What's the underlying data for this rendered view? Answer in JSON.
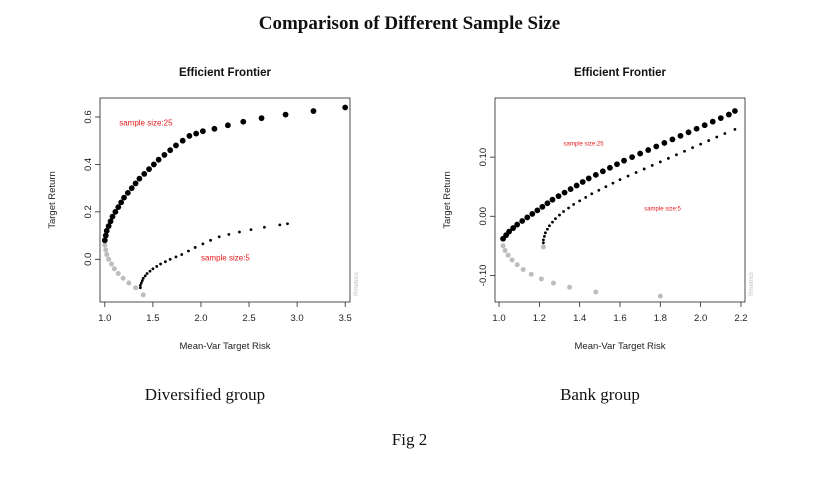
{
  "page": {
    "title": "Comparison of Different Sample Size",
    "figure_label": "Fig 2"
  },
  "chart_data": [
    {
      "type": "scatter",
      "caption": "Diversified group",
      "title": "Efficient Frontier",
      "xlabel": "Mean-Var Target Risk",
      "ylabel": "Target Return",
      "xlim": [
        0.95,
        3.55
      ],
      "ylim": [
        -0.18,
        0.68
      ],
      "xticks": [
        1.0,
        1.5,
        2.0,
        2.5,
        3.0,
        3.5
      ],
      "xtick_labels": [
        "1.0",
        "1.5",
        "2.0",
        "2.5",
        "3.0",
        "3.5"
      ],
      "yticks": [
        0.0,
        0.2,
        0.4,
        0.6
      ],
      "ytick_labels": [
        "0.0",
        "0.2",
        "0.4",
        "0.6"
      ],
      "watermark": "Rmetrics",
      "colors": {
        "series_25": "#000000",
        "series_5": "#000000",
        "inefficient": "#bdbdbd",
        "annotation": "#e41a1c"
      },
      "series": [
        {
          "name": "sample size:25",
          "point_size": "large",
          "x": [
            1.0,
            1.01,
            1.02,
            1.04,
            1.06,
            1.08,
            1.11,
            1.14,
            1.17,
            1.2,
            1.24,
            1.28,
            1.32,
            1.36,
            1.41,
            1.46,
            1.51,
            1.56,
            1.62,
            1.68,
            1.74,
            1.81,
            1.88,
            1.95,
            2.02,
            2.14,
            2.28,
            2.44,
            2.63,
            2.88,
            3.17,
            3.5
          ],
          "y": [
            0.08,
            0.1,
            0.12,
            0.14,
            0.16,
            0.18,
            0.2,
            0.22,
            0.24,
            0.26,
            0.28,
            0.3,
            0.32,
            0.34,
            0.36,
            0.38,
            0.4,
            0.42,
            0.44,
            0.46,
            0.48,
            0.5,
            0.52,
            0.53,
            0.54,
            0.55,
            0.565,
            0.58,
            0.595,
            0.61,
            0.625,
            0.64
          ]
        },
        {
          "name": "sample size:5",
          "point_size": "small",
          "x": [
            1.37,
            1.37,
            1.38,
            1.39,
            1.4,
            1.42,
            1.44,
            1.47,
            1.5,
            1.54,
            1.58,
            1.63,
            1.68,
            1.74,
            1.8,
            1.87,
            1.94,
            2.02,
            2.1,
            2.19,
            2.29,
            2.4,
            2.52,
            2.66,
            2.82,
            2.9
          ],
          "y": [
            -0.12,
            -0.11,
            -0.1,
            -0.09,
            -0.08,
            -0.07,
            -0.06,
            -0.05,
            -0.04,
            -0.03,
            -0.02,
            -0.01,
            0.0,
            0.01,
            0.02,
            0.035,
            0.05,
            0.065,
            0.08,
            0.095,
            0.105,
            0.115,
            0.125,
            0.135,
            0.145,
            0.15
          ]
        },
        {
          "name": "",
          "point_size": "medium",
          "style": "inefficient",
          "x": [
            1.0,
            1.01,
            1.02,
            1.04,
            1.07,
            1.1,
            1.14,
            1.19,
            1.25,
            1.32,
            1.4
          ],
          "y": [
            0.06,
            0.04,
            0.02,
            0.0,
            -0.02,
            -0.04,
            -0.06,
            -0.08,
            -0.1,
            -0.12,
            -0.15
          ]
        }
      ],
      "annotations": [
        {
          "text": "sample size:25",
          "x": 1.15,
          "y": 0.565
        },
        {
          "text": "sample size:5",
          "x": 2.0,
          "y": -0.005
        }
      ]
    },
    {
      "type": "scatter",
      "caption": "Bank group",
      "title": "Efficient Frontier",
      "xlabel": "Mean-Var Target Risk",
      "ylabel": "Target Return",
      "xlim": [
        0.98,
        2.22
      ],
      "ylim": [
        -0.145,
        0.2
      ],
      "xticks": [
        1.0,
        1.2,
        1.4,
        1.6,
        1.8,
        2.0,
        2.2
      ],
      "xtick_labels": [
        "1.0",
        "1.2",
        "1.4",
        "1.6",
        "1.8",
        "2.0",
        "2.2"
      ],
      "yticks": [
        -0.1,
        0.0,
        0.1
      ],
      "ytick_labels": [
        "-0.10",
        "0.00",
        "0.10"
      ],
      "watermark": "Rmetrics",
      "colors": {
        "series_25": "#000000",
        "series_5": "#000000",
        "inefficient": "#bdbdbd",
        "annotation": "#e41a1c"
      },
      "series": [
        {
          "name": "sample size:25",
          "point_size": "large",
          "x": [
            1.02,
            1.035,
            1.05,
            1.07,
            1.09,
            1.115,
            1.14,
            1.165,
            1.19,
            1.215,
            1.24,
            1.265,
            1.295,
            1.325,
            1.355,
            1.385,
            1.415,
            1.445,
            1.48,
            1.515,
            1.55,
            1.585,
            1.62,
            1.66,
            1.7,
            1.74,
            1.78,
            1.82,
            1.86,
            1.9,
            1.94,
            1.98,
            2.02,
            2.06,
            2.1,
            2.14,
            2.17
          ],
          "y": [
            -0.038,
            -0.032,
            -0.026,
            -0.02,
            -0.014,
            -0.008,
            -0.002,
            0.004,
            0.01,
            0.016,
            0.022,
            0.028,
            0.034,
            0.04,
            0.046,
            0.052,
            0.058,
            0.064,
            0.07,
            0.076,
            0.082,
            0.088,
            0.094,
            0.1,
            0.106,
            0.112,
            0.118,
            0.124,
            0.13,
            0.136,
            0.142,
            0.148,
            0.154,
            0.16,
            0.166,
            0.172,
            0.178
          ]
        },
        {
          "name": "sample size:5",
          "point_size": "small",
          "x": [
            1.22,
            1.22,
            1.225,
            1.23,
            1.24,
            1.25,
            1.265,
            1.28,
            1.3,
            1.32,
            1.345,
            1.37,
            1.4,
            1.43,
            1.46,
            1.495,
            1.53,
            1.565,
            1.6,
            1.64,
            1.68,
            1.72,
            1.76,
            1.8,
            1.84,
            1.88,
            1.92,
            1.96,
            2.0,
            2.04,
            2.08,
            2.12,
            2.17
          ],
          "y": [
            -0.045,
            -0.04,
            -0.034,
            -0.028,
            -0.022,
            -0.016,
            -0.01,
            -0.004,
            0.002,
            0.008,
            0.014,
            0.02,
            0.026,
            0.032,
            0.038,
            0.044,
            0.05,
            0.056,
            0.062,
            0.068,
            0.074,
            0.08,
            0.086,
            0.092,
            0.098,
            0.104,
            0.11,
            0.116,
            0.122,
            0.128,
            0.134,
            0.14,
            0.147
          ]
        },
        {
          "name": "",
          "point_size": "medium",
          "style": "inefficient",
          "x": [
            1.02,
            1.03,
            1.045,
            1.065,
            1.09,
            1.12,
            1.16,
            1.21,
            1.27,
            1.35,
            1.48,
            1.8,
            1.22
          ],
          "y": [
            -0.05,
            -0.058,
            -0.066,
            -0.074,
            -0.082,
            -0.09,
            -0.098,
            -0.106,
            -0.113,
            -0.12,
            -0.128,
            -0.135,
            -0.052
          ]
        }
      ],
      "annotations": [
        {
          "text": "sample size:25",
          "x": 1.32,
          "y": 0.12
        },
        {
          "text": "sample size:5",
          "x": 1.72,
          "y": 0.01
        }
      ]
    }
  ]
}
